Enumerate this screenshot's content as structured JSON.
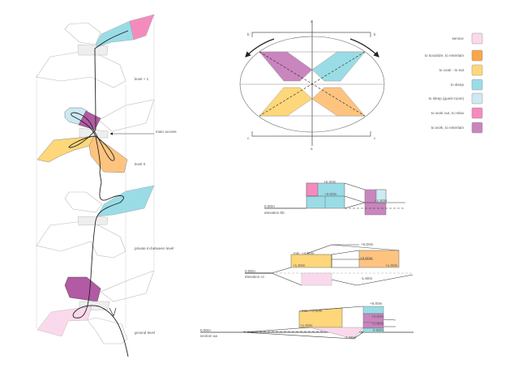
{
  "colors": {
    "service": "#fbd9ec",
    "socialize": "#f9a64a",
    "cook": "#fdd77a",
    "sleep": "#9adce6",
    "guest": "#cde9f1",
    "workout": "#f58bbd",
    "work": "#c985be",
    "work_dark": "#b25aa4",
    "orange_light": "#fec47f"
  },
  "legend": [
    {
      "label": "service",
      "color": "#fbd9ec"
    },
    {
      "label": "to socialize, to entertain",
      "color": "#f9a64a"
    },
    {
      "label": "to cook - to eat",
      "color": "#fdd77a"
    },
    {
      "label": "to sleep",
      "color": "#9adce6"
    },
    {
      "label": "to sleep (guest room)",
      "color": "#cde9f1"
    },
    {
      "label": "to work out, to relax",
      "color": "#f58bbd"
    },
    {
      "label": "to work, to entertain",
      "color": "#c985be"
    }
  ],
  "levels": {
    "level_plus1": "level + 1",
    "main_access": "main access",
    "level_0": "level 0",
    "private": "private in-between level",
    "ground": "ground level"
  },
  "plan": {
    "a": "a",
    "b": "b",
    "c": "c"
  },
  "elevation_bb": {
    "title": "elevation bb",
    "ground": "0.00m",
    "top": "+6.00m",
    "mid": "+3.00m",
    "right": "+1.50m"
  },
  "elevation_cc": {
    "title": "elevation cc",
    "ground": "0.00m",
    "min": "min. +4.00m",
    "top": "+6.00m",
    "mid": "+3.00m",
    "left": "+1.50m",
    "right": "+1.00m",
    "low": "-1.50m"
  },
  "section_aa": {
    "title": "section aa",
    "ground": "0.00m",
    "min": "min. +4.00m",
    "top": "+6.00m",
    "mid": "+3.00m",
    "one": "+1.00m",
    "left": "+1.00m",
    "zero": "0.00m",
    "low": "-1.50m"
  }
}
